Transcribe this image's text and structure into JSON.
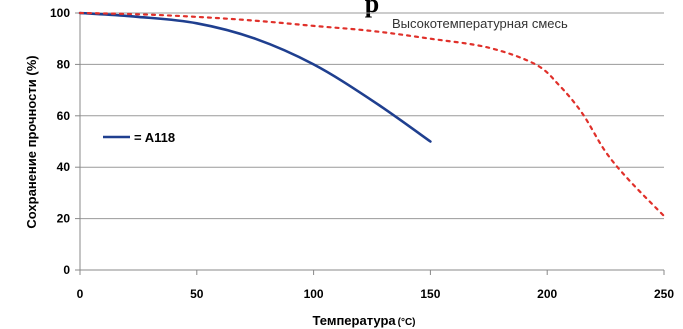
{
  "chart_data": {
    "type": "line",
    "title": "р",
    "xlabel": "Температура",
    "xunit": "(°C)",
    "ylabel": "Сохранение прочности (%)",
    "xlim": [
      0,
      250
    ],
    "ylim": [
      0,
      100
    ],
    "xticks": [
      0,
      50,
      100,
      150,
      200,
      250
    ],
    "yticks": [
      0,
      20,
      40,
      60,
      80,
      100
    ],
    "grid": "horizontal",
    "series": [
      {
        "name": "= A118",
        "color": "#1f3f8f",
        "style": "solid",
        "x": [
          0,
          25,
          50,
          75,
          100,
          125,
          150
        ],
        "y": [
          100,
          98.5,
          96,
          90,
          80,
          66,
          50
        ]
      },
      {
        "name": "Высокотемпературная смесь",
        "color": "#e0302a",
        "style": "dotted",
        "x": [
          0,
          25,
          50,
          75,
          100,
          125,
          150,
          175,
          195,
          205,
          215,
          225,
          235,
          250
        ],
        "y": [
          100,
          99.5,
          98.5,
          97,
          95,
          93,
          90,
          86.5,
          80,
          72,
          61,
          46,
          35,
          21
        ]
      }
    ]
  }
}
